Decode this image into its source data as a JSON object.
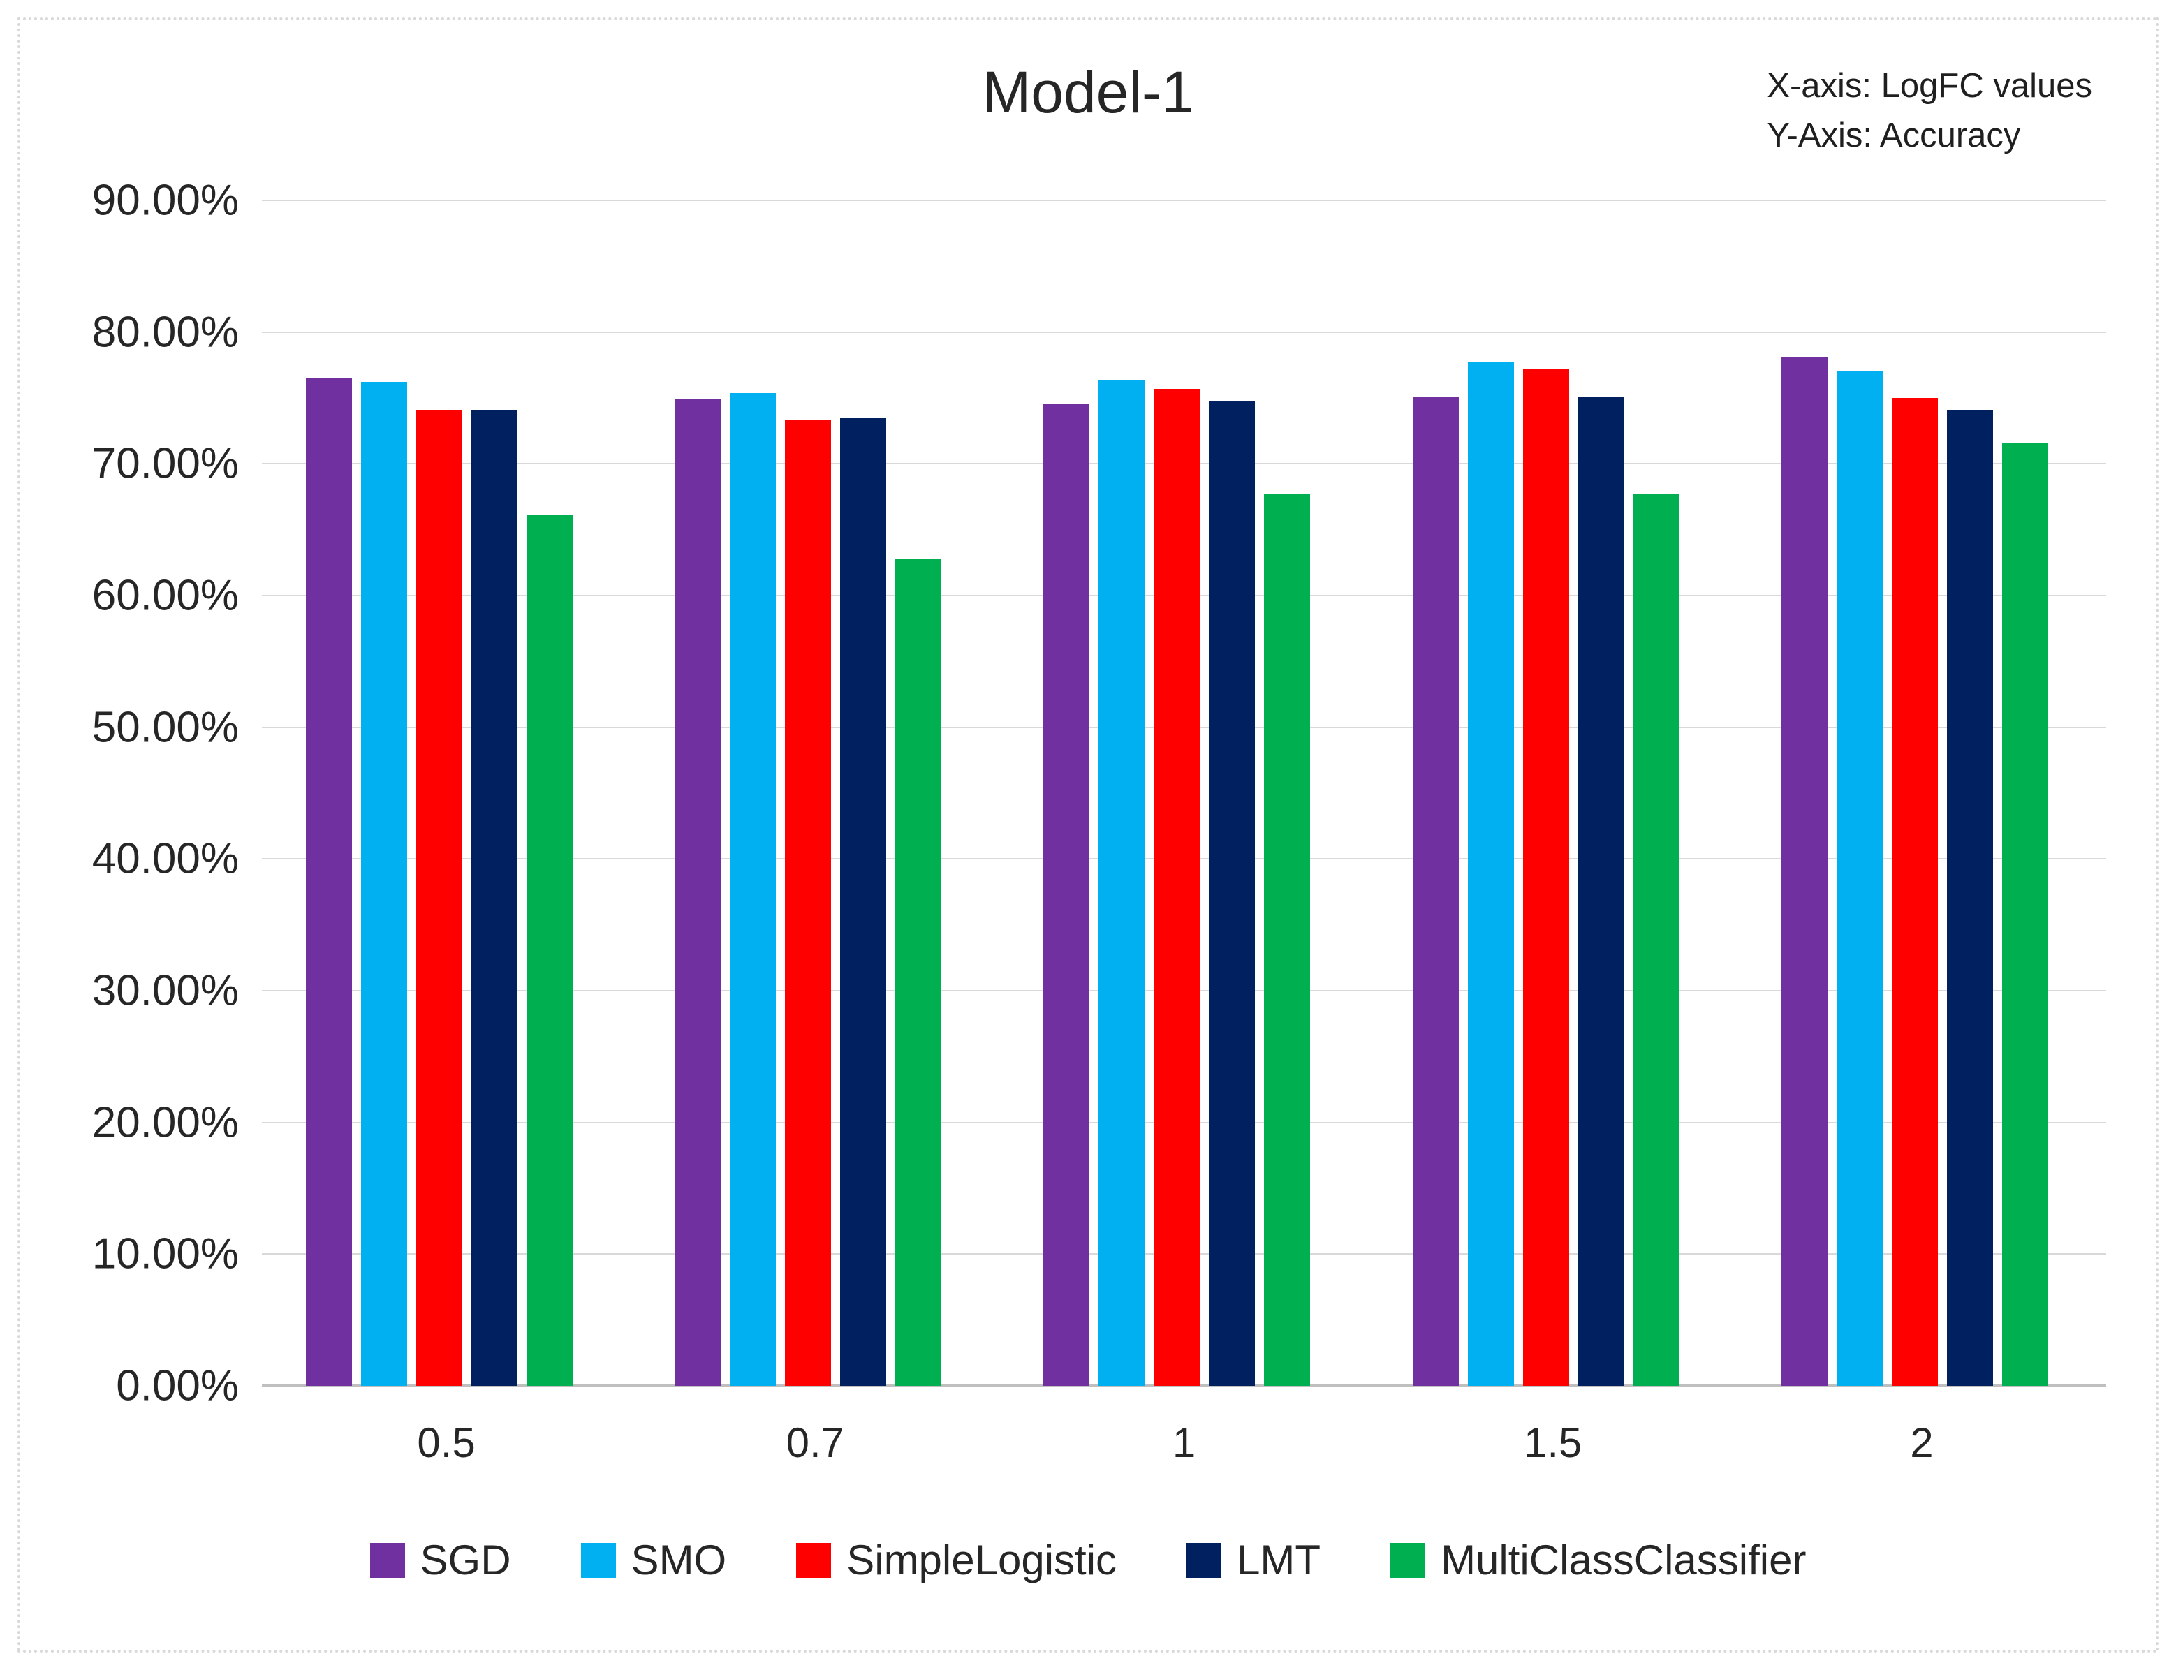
{
  "chart_data": {
    "type": "bar",
    "title": "Model-1",
    "annotation": {
      "line1": "X-axis: LogFC values",
      "line2": "Y-Axis: Accuracy"
    },
    "xlabel": "LogFC values",
    "ylabel": "Accuracy",
    "categories": [
      "0.5",
      "0.7",
      "1",
      "1.5",
      "2"
    ],
    "series": [
      {
        "name": "SGD",
        "color": "#7030A0",
        "values": [
          76.5,
          74.9,
          74.5,
          75.1,
          78.1
        ]
      },
      {
        "name": "SMO",
        "color": "#00B0F0",
        "values": [
          76.2,
          75.4,
          76.4,
          77.7,
          77.0
        ]
      },
      {
        "name": "SimpleLogistic",
        "color": "#FF0000",
        "values": [
          74.1,
          73.3,
          75.7,
          77.2,
          75.0
        ]
      },
      {
        "name": "LMT",
        "color": "#002060",
        "values": [
          74.1,
          73.5,
          74.8,
          75.1,
          74.1
        ]
      },
      {
        "name": "MultiClassClassifier",
        "color": "#00B050",
        "values": [
          66.1,
          62.8,
          67.7,
          67.7,
          71.6
        ]
      }
    ],
    "ylim": [
      0,
      90
    ],
    "ytick_step": 10,
    "ytick_labels": [
      "0.00%",
      "10.00%",
      "20.00%",
      "30.00%",
      "40.00%",
      "50.00%",
      "60.00%",
      "70.00%",
      "80.00%",
      "90.00%"
    ],
    "grid": true,
    "legend_position": "bottom",
    "colors": {
      "gridline": "#D9D9D9",
      "axis_line": "#BFBFBF",
      "text": "#262626",
      "frame_border": "#D9D9D9",
      "background": "#FFFFFF"
    }
  }
}
